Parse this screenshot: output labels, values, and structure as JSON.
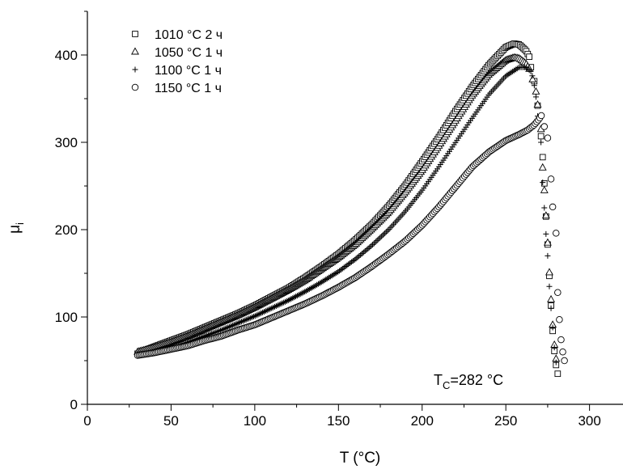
{
  "chart_data": {
    "type": "scatter",
    "xlabel": "T (°C)",
    "ylabel": "μ",
    "ylabel_sub": "i",
    "xlim": [
      0,
      320
    ],
    "ylim": [
      0,
      450
    ],
    "xticks": [
      0,
      50,
      100,
      150,
      200,
      250,
      300
    ],
    "yticks": [
      0,
      100,
      200,
      300,
      400
    ],
    "x_minor_step": 25,
    "y_minor_step": 50,
    "grid": false,
    "legend_position": "top-left",
    "annotation": {
      "main": "T",
      "sub": "C",
      "rest": "=282 °C",
      "x": 265,
      "y": 28
    },
    "series": [
      {
        "name": "1010 °C 2 ч",
        "marker": "square",
        "keypoints": [
          [
            30,
            58
          ],
          [
            40,
            66
          ],
          [
            50,
            73
          ],
          [
            60,
            80
          ],
          [
            70,
            88
          ],
          [
            80,
            96
          ],
          [
            90,
            104
          ],
          [
            100,
            113
          ],
          [
            110,
            123
          ],
          [
            120,
            133
          ],
          [
            130,
            145
          ],
          [
            140,
            158
          ],
          [
            150,
            172
          ],
          [
            160,
            188
          ],
          [
            170,
            206
          ],
          [
            180,
            227
          ],
          [
            190,
            251
          ],
          [
            200,
            278
          ],
          [
            210,
            306
          ],
          [
            220,
            336
          ],
          [
            230,
            364
          ],
          [
            240,
            389
          ],
          [
            250,
            409
          ],
          [
            255,
            413
          ],
          [
            258,
            412
          ],
          [
            262,
            405
          ],
          [
            264,
            398
          ]
        ],
        "drop": [
          [
            265,
            386
          ],
          [
            267,
            370
          ],
          [
            269,
            342
          ],
          [
            271,
            307
          ],
          [
            272,
            283
          ],
          [
            273,
            253
          ],
          [
            274,
            215
          ],
          [
            275,
            183
          ],
          [
            276,
            147
          ],
          [
            277,
            113
          ],
          [
            278,
            84
          ],
          [
            279,
            61
          ],
          [
            280,
            45
          ],
          [
            281,
            35
          ]
        ]
      },
      {
        "name": "1050 °C 1 ч",
        "marker": "triangle",
        "keypoints": [
          [
            30,
            60
          ],
          [
            40,
            65
          ],
          [
            50,
            71
          ],
          [
            60,
            78
          ],
          [
            70,
            86
          ],
          [
            80,
            94
          ],
          [
            90,
            102
          ],
          [
            100,
            111
          ],
          [
            110,
            121
          ],
          [
            120,
            131
          ],
          [
            130,
            142
          ],
          [
            140,
            155
          ],
          [
            150,
            168
          ],
          [
            160,
            183
          ],
          [
            170,
            201
          ],
          [
            180,
            220
          ],
          [
            190,
            243
          ],
          [
            200,
            268
          ],
          [
            210,
            296
          ],
          [
            220,
            325
          ],
          [
            230,
            354
          ],
          [
            240,
            378
          ],
          [
            250,
            394
          ],
          [
            255,
            397
          ],
          [
            258,
            396
          ],
          [
            262,
            390
          ],
          [
            264,
            384
          ]
        ],
        "drop": [
          [
            266,
            372
          ],
          [
            268,
            358
          ],
          [
            269,
            343
          ],
          [
            271,
            315
          ],
          [
            272,
            271
          ],
          [
            273,
            245
          ],
          [
            274,
            216
          ],
          [
            275,
            185
          ],
          [
            276,
            151
          ],
          [
            277,
            120
          ],
          [
            278,
            91
          ],
          [
            279,
            68
          ],
          [
            280,
            52
          ]
        ]
      },
      {
        "name": "1100 °C 1 ч",
        "marker": "plus",
        "keypoints": [
          [
            30,
            57
          ],
          [
            40,
            60
          ],
          [
            50,
            65
          ],
          [
            60,
            71
          ],
          [
            70,
            78
          ],
          [
            80,
            85
          ],
          [
            90,
            93
          ],
          [
            100,
            101
          ],
          [
            110,
            110
          ],
          [
            120,
            119
          ],
          [
            130,
            129
          ],
          [
            140,
            140
          ],
          [
            150,
            152
          ],
          [
            160,
            166
          ],
          [
            170,
            182
          ],
          [
            180,
            200
          ],
          [
            190,
            221
          ],
          [
            200,
            245
          ],
          [
            210,
            272
          ],
          [
            220,
            300
          ],
          [
            230,
            328
          ],
          [
            240,
            355
          ],
          [
            250,
            376
          ],
          [
            258,
            386
          ],
          [
            262,
            386
          ],
          [
            265,
            381
          ],
          [
            266,
            375
          ]
        ],
        "drop": [
          [
            267,
            365
          ],
          [
            268,
            352
          ],
          [
            269,
            330
          ],
          [
            271,
            300
          ],
          [
            272,
            254
          ],
          [
            273,
            225
          ],
          [
            274,
            195
          ],
          [
            275,
            170
          ],
          [
            276,
            135
          ],
          [
            277,
            110
          ],
          [
            278,
            88
          ],
          [
            279,
            65
          ],
          [
            280,
            48
          ]
        ]
      },
      {
        "name": "1150 °C 1 ч",
        "marker": "circle",
        "keypoints": [
          [
            30,
            56
          ],
          [
            40,
            59
          ],
          [
            50,
            63
          ],
          [
            60,
            67
          ],
          [
            70,
            73
          ],
          [
            80,
            78
          ],
          [
            90,
            85
          ],
          [
            100,
            91
          ],
          [
            110,
            99
          ],
          [
            120,
            107
          ],
          [
            130,
            115
          ],
          [
            140,
            124
          ],
          [
            150,
            134
          ],
          [
            160,
            145
          ],
          [
            170,
            158
          ],
          [
            180,
            172
          ],
          [
            190,
            187
          ],
          [
            200,
            205
          ],
          [
            210,
            226
          ],
          [
            220,
            249
          ],
          [
            230,
            272
          ],
          [
            240,
            289
          ],
          [
            250,
            302
          ],
          [
            258,
            309
          ],
          [
            263,
            314
          ],
          [
            267,
            320
          ],
          [
            270,
            327
          ],
          [
            272,
            333
          ]
        ],
        "drop": [
          [
            273,
            318
          ],
          [
            275,
            305
          ],
          [
            277,
            258
          ],
          [
            278,
            226
          ],
          [
            280,
            196
          ],
          [
            281,
            128
          ],
          [
            282,
            97
          ],
          [
            283,
            74
          ],
          [
            284,
            60
          ],
          [
            285,
            50
          ]
        ]
      }
    ]
  }
}
